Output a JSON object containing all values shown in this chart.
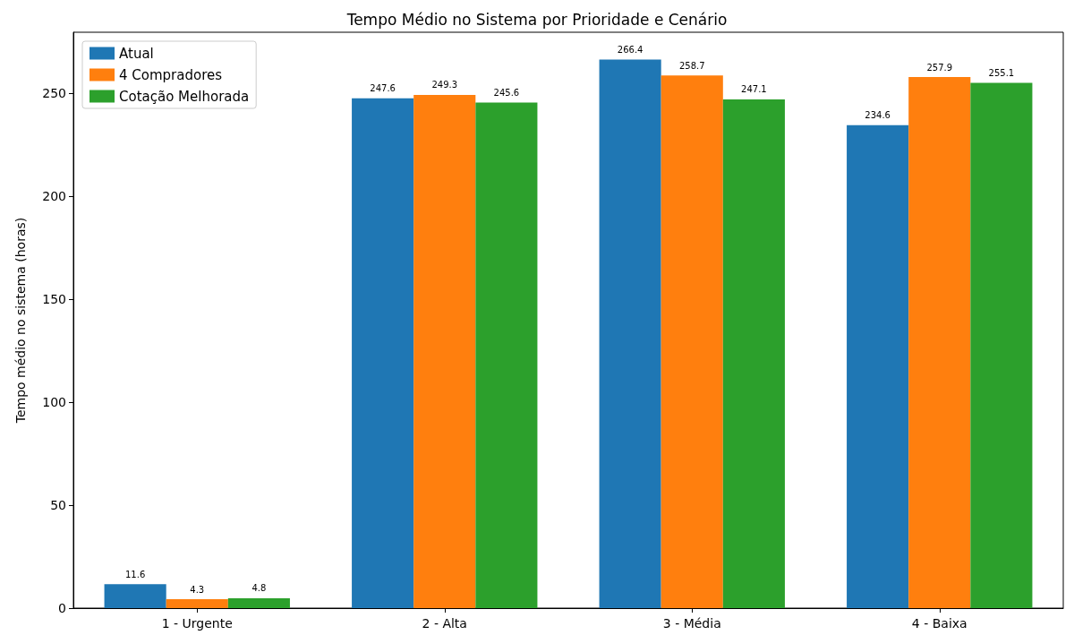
{
  "chart_data": {
    "type": "bar",
    "title": "Tempo Médio no Sistema por Prioridade e Cenário",
    "ylabel": "Tempo médio no sistema (horas)",
    "categories": [
      "1 - Urgente",
      "2 - Alta",
      "3 - Média",
      "4 - Baixa"
    ],
    "series": [
      {
        "name": "Atual",
        "color": "#1f77b4",
        "values": [
          11.6,
          247.6,
          266.4,
          234.6
        ]
      },
      {
        "name": "4 Compradores",
        "color": "#ff7f0e",
        "values": [
          4.3,
          249.3,
          258.7,
          257.9
        ]
      },
      {
        "name": "Cotação Melhorada",
        "color": "#2ca02c",
        "values": [
          4.8,
          245.6,
          247.1,
          255.1
        ]
      }
    ],
    "ylim": [
      0,
      279.7
    ],
    "yticks": [
      0,
      50,
      100,
      150,
      200,
      250
    ],
    "data_labels": true,
    "legend": "top left",
    "grid": false
  }
}
